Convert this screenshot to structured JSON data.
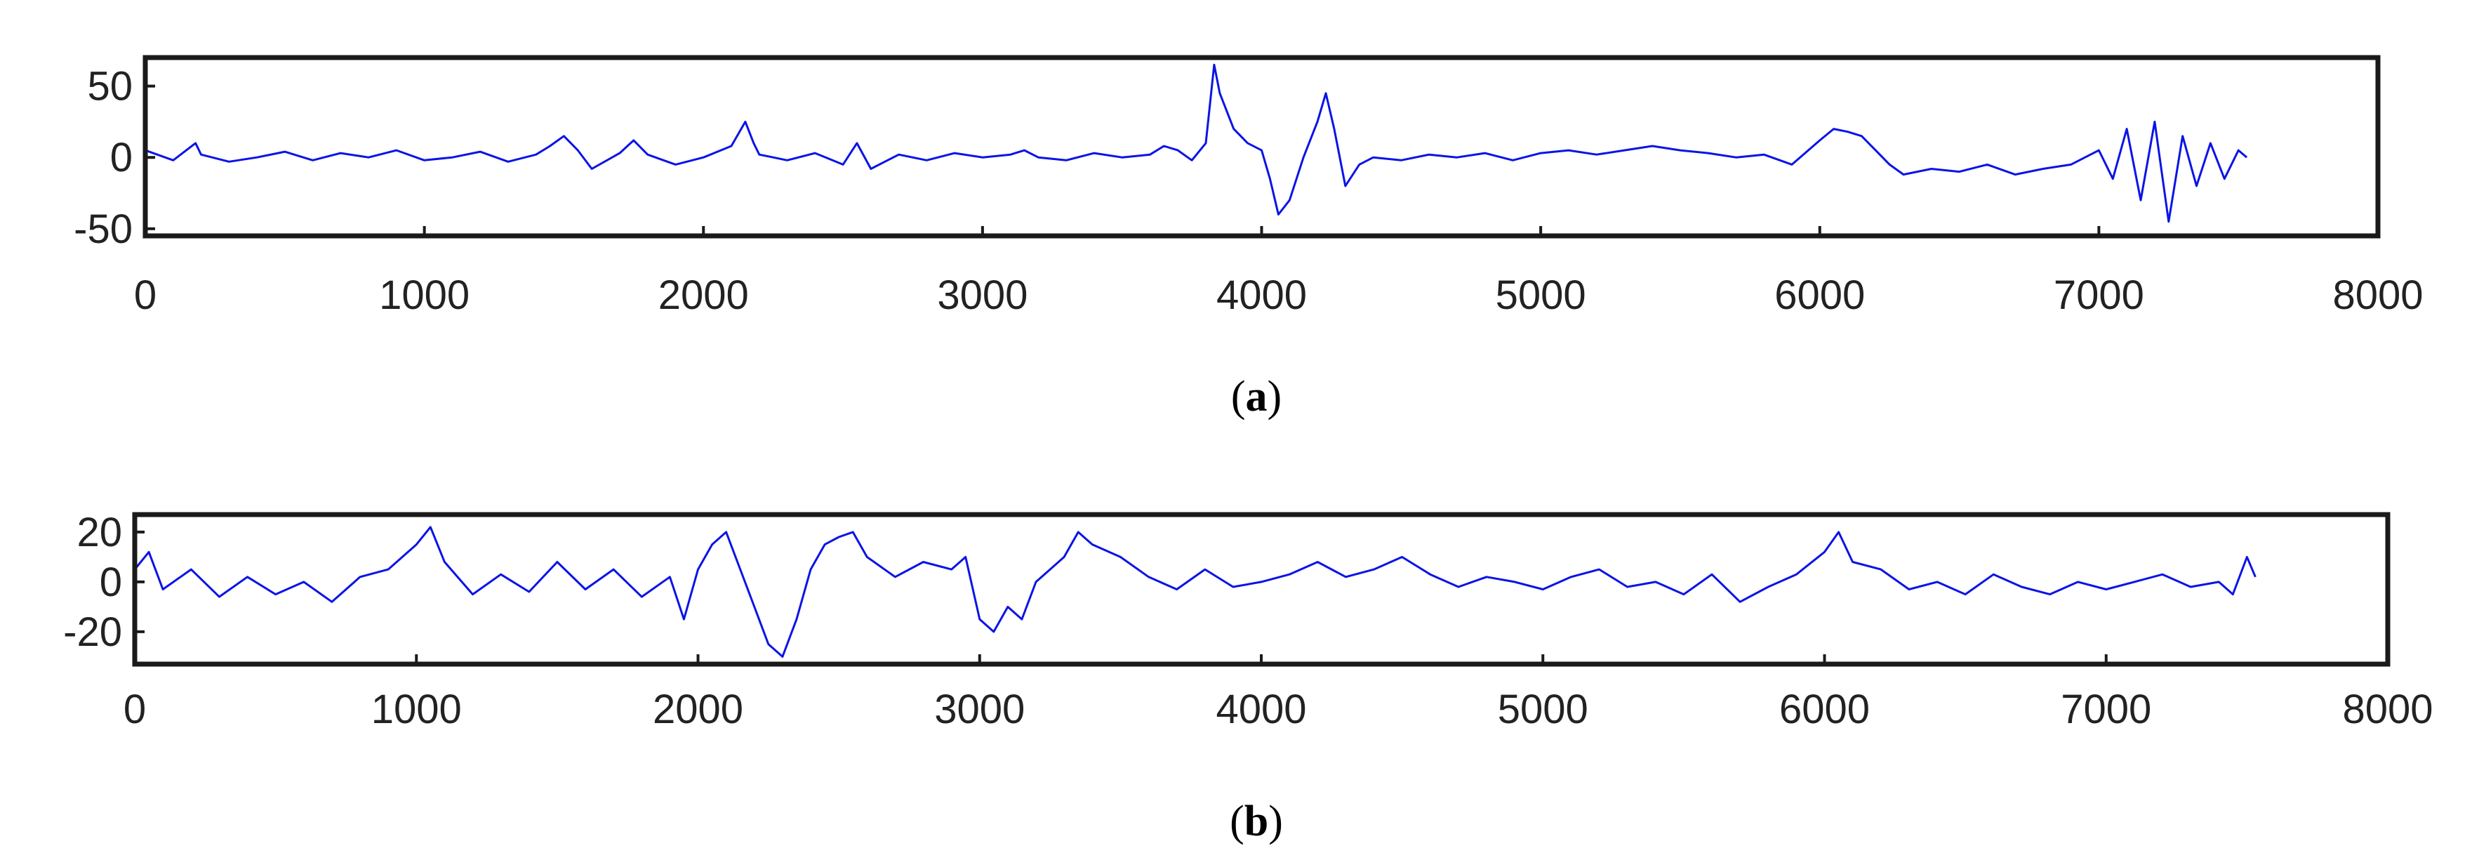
{
  "colors": {
    "series": "#0a14e6",
    "axes": "#1a1a1a"
  },
  "chart_data": [
    {
      "type": "line",
      "panel_label": "a",
      "xlim": [
        0,
        8000
      ],
      "ylim": [
        -55,
        70
      ],
      "x_ticks": [
        0,
        1000,
        2000,
        3000,
        4000,
        5000,
        6000,
        7000,
        8000
      ],
      "x_tick_labels": [
        "0",
        "1000",
        "2000",
        "3000",
        "4000",
        "5000",
        "6000",
        "7000",
        "8000"
      ],
      "y_ticks": [
        50,
        0,
        -50
      ],
      "y_tick_labels": [
        "50",
        "0",
        "-50"
      ],
      "grid": false,
      "series": [
        {
          "x": [
            0,
            100,
            180,
            200,
            300,
            400,
            500,
            600,
            700,
            800,
            900,
            1000,
            1100,
            1200,
            1300,
            1400,
            1450,
            1500,
            1550,
            1600,
            1700,
            1750,
            1800,
            1900,
            2000,
            2100,
            2150,
            2180,
            2200,
            2250,
            2300,
            2400,
            2500,
            2550,
            2600,
            2650,
            2700,
            2800,
            2900,
            3000,
            3100,
            3150,
            3200,
            3300,
            3400,
            3500,
            3600,
            3650,
            3700,
            3750,
            3800,
            3830,
            3850,
            3900,
            3950,
            4000,
            4030,
            4060,
            4100,
            4150,
            4200,
            4230,
            4260,
            4300,
            4350,
            4400,
            4500,
            4600,
            4700,
            4800,
            4900,
            5000,
            5100,
            5200,
            5300,
            5400,
            5500,
            5600,
            5700,
            5800,
            5900,
            6000,
            6050,
            6100,
            6150,
            6200,
            6250,
            6300,
            6400,
            6500,
            6600,
            6700,
            6800,
            6900,
            7000,
            7050,
            7100,
            7150,
            7200,
            7250,
            7300,
            7350,
            7400,
            7450,
            7500,
            7530
          ],
          "y": [
            5,
            -2,
            10,
            2,
            -3,
            0,
            4,
            -2,
            3,
            0,
            5,
            -2,
            0,
            4,
            -3,
            2,
            8,
            15,
            5,
            -8,
            3,
            12,
            2,
            -5,
            0,
            8,
            25,
            10,
            2,
            0,
            -2,
            3,
            -5,
            10,
            -8,
            -3,
            2,
            -2,
            3,
            0,
            2,
            5,
            0,
            -2,
            3,
            0,
            2,
            8,
            5,
            -2,
            10,
            65,
            45,
            20,
            10,
            5,
            -15,
            -40,
            -30,
            0,
            25,
            45,
            20,
            -20,
            -5,
            0,
            -2,
            2,
            0,
            3,
            -2,
            3,
            5,
            2,
            5,
            8,
            5,
            3,
            0,
            2,
            -5,
            12,
            20,
            18,
            15,
            5,
            -5,
            -12,
            -8,
            -10,
            -5,
            -12,
            -8,
            -5,
            5,
            -15,
            20,
            -30,
            25,
            -45,
            15,
            -20,
            10,
            -15,
            5,
            0
          ]
        }
      ]
    },
    {
      "type": "line",
      "panel_label": "b",
      "xlim": [
        0,
        8000
      ],
      "ylim": [
        -33,
        27
      ],
      "x_ticks": [
        0,
        1000,
        2000,
        3000,
        4000,
        5000,
        6000,
        7000,
        8000
      ],
      "x_tick_labels": [
        "0",
        "1000",
        "2000",
        "3000",
        "4000",
        "5000",
        "6000",
        "7000",
        "8000"
      ],
      "y_ticks": [
        20,
        0,
        -20
      ],
      "y_tick_labels": [
        "20",
        "0",
        "-20"
      ],
      "grid": false,
      "series": [
        {
          "x": [
            0,
            50,
            100,
            200,
            300,
            400,
            500,
            600,
            700,
            800,
            900,
            1000,
            1050,
            1100,
            1200,
            1300,
            1400,
            1500,
            1600,
            1700,
            1800,
            1900,
            1950,
            2000,
            2050,
            2100,
            2150,
            2200,
            2250,
            2300,
            2350,
            2400,
            2450,
            2500,
            2550,
            2600,
            2700,
            2800,
            2900,
            2950,
            3000,
            3050,
            3100,
            3150,
            3200,
            3250,
            3300,
            3350,
            3400,
            3500,
            3600,
            3700,
            3800,
            3900,
            4000,
            4100,
            4200,
            4300,
            4400,
            4500,
            4600,
            4700,
            4800,
            4900,
            5000,
            5100,
            5200,
            5300,
            5400,
            5500,
            5600,
            5700,
            5800,
            5900,
            6000,
            6050,
            6100,
            6200,
            6300,
            6400,
            6500,
            6600,
            6700,
            6800,
            6900,
            7000,
            7100,
            7200,
            7300,
            7400,
            7450,
            7500,
            7530
          ],
          "y": [
            5,
            12,
            -3,
            5,
            -6,
            2,
            -5,
            0,
            -8,
            2,
            5,
            15,
            22,
            8,
            -5,
            3,
            -4,
            8,
            -3,
            5,
            -6,
            2,
            -15,
            5,
            15,
            20,
            5,
            -10,
            -25,
            -30,
            -15,
            5,
            15,
            18,
            20,
            10,
            2,
            8,
            5,
            10,
            -15,
            -20,
            -10,
            -15,
            0,
            5,
            10,
            20,
            15,
            10,
            2,
            -3,
            5,
            -2,
            0,
            3,
            8,
            2,
            5,
            10,
            3,
            -2,
            2,
            0,
            -3,
            2,
            5,
            -2,
            0,
            -5,
            3,
            -8,
            -2,
            3,
            12,
            20,
            8,
            5,
            -3,
            0,
            -5,
            3,
            -2,
            -5,
            0,
            -3,
            0,
            3,
            -2,
            0,
            -5,
            10,
            2
          ]
        }
      ]
    }
  ]
}
